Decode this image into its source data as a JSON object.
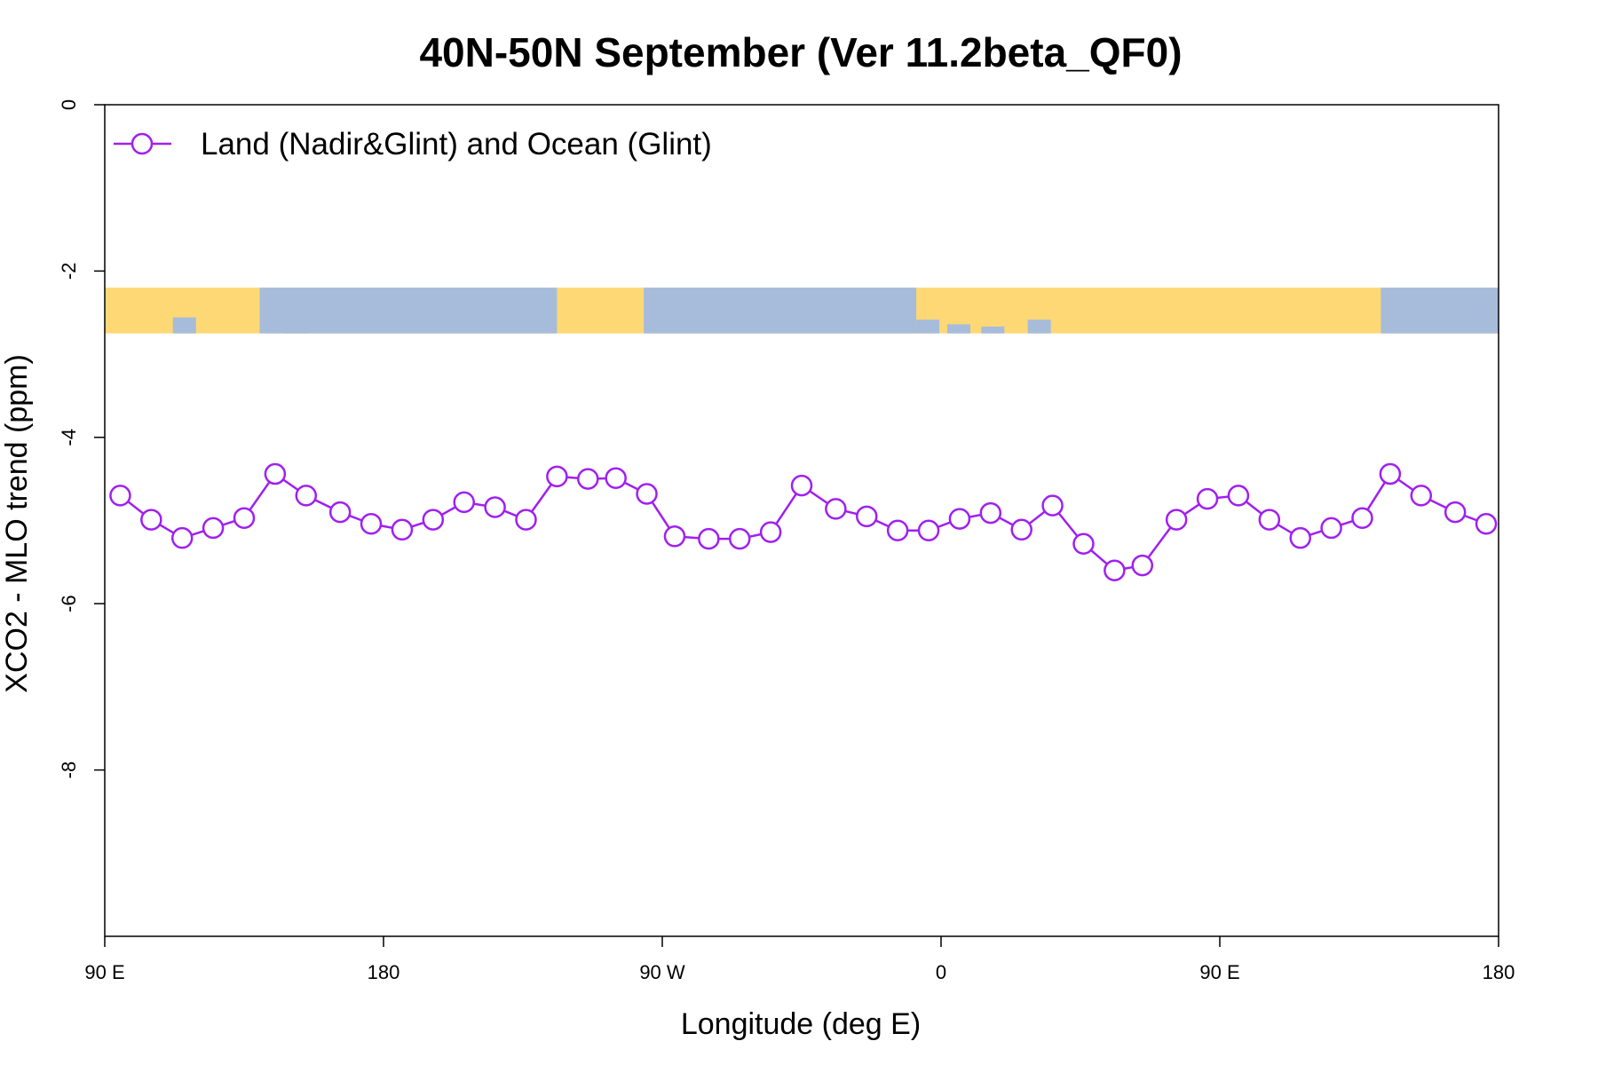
{
  "chart_data": {
    "type": "line",
    "title": "40N-50N September (Ver 11.2beta_QF0)",
    "xlabel": "Longitude (deg E)",
    "ylabel": "XCO2 - MLO trend (ppm)",
    "xlim": [
      90,
      540
    ],
    "ylim": [
      -10,
      0
    ],
    "x_ticks": [
      {
        "value": 90,
        "label": "90 E"
      },
      {
        "value": 180,
        "label": "180"
      },
      {
        "value": 270,
        "label": "90 W"
      },
      {
        "value": 360,
        "label": "0"
      },
      {
        "value": 450,
        "label": "90 E"
      },
      {
        "value": 540,
        "label": "180"
      }
    ],
    "y_ticks": [
      {
        "value": 0,
        "label": "0"
      },
      {
        "value": -2,
        "label": "-2"
      },
      {
        "value": -4,
        "label": "-4"
      },
      {
        "value": -6,
        "label": "-6"
      },
      {
        "value": -8,
        "label": "-8"
      }
    ],
    "legend": {
      "position": "top-left",
      "entries": [
        "Land (Nadir&Glint) and Ocean (Glint)"
      ]
    },
    "map_strip": {
      "y_range": [
        -2.75,
        -2.2
      ],
      "land_color": "#FDD875",
      "ocean_color": "#A7BCDB"
    },
    "series": [
      {
        "name": "Land (Nadir&Glint) and Ocean (Glint)",
        "color": "#A020F0",
        "marker": "open-circle",
        "x": [
          95,
          105,
          115,
          125,
          135,
          145,
          155,
          166,
          176,
          186,
          196,
          206,
          216,
          226,
          236,
          246,
          255,
          265,
          274,
          285,
          295,
          305,
          315,
          326,
          336,
          346,
          356,
          366,
          376,
          386,
          396,
          406,
          416,
          425,
          436,
          446,
          456,
          466,
          476,
          486,
          496,
          505,
          515,
          526,
          536
        ],
        "y": [
          -4.7,
          -4.99,
          -5.21,
          -5.09,
          -4.97,
          -4.44,
          -4.7,
          -4.9,
          -5.04,
          -5.11,
          -4.99,
          -4.78,
          -4.84,
          -4.99,
          -4.47,
          -4.5,
          -4.49,
          -4.68,
          -5.19,
          -5.22,
          -5.22,
          -5.14,
          -4.58,
          -4.86,
          -4.95,
          -5.12,
          -5.12,
          -4.98,
          -4.91,
          -5.11,
          -4.82,
          -5.28,
          -5.6,
          -5.54,
          -4.99,
          -4.74,
          -4.7,
          -4.99,
          -5.21,
          -5.09,
          -4.97,
          -4.44,
          -4.7,
          -4.9,
          -5.04
        ]
      }
    ]
  }
}
